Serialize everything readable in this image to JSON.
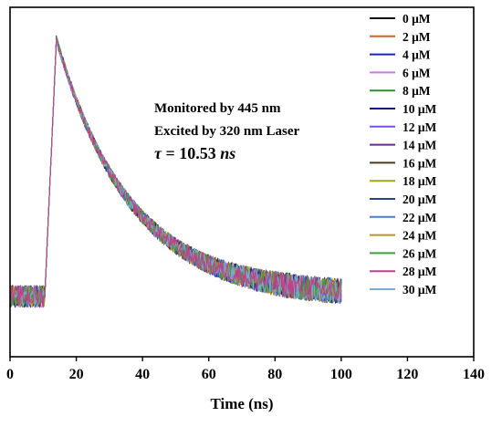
{
  "chart_data": {
    "type": "line",
    "title": "",
    "xlabel": "Time (ns)",
    "ylabel": "",
    "xlim": [
      0,
      140
    ],
    "ylim": [
      0,
      1.1
    ],
    "x_ticks": [
      0,
      20,
      40,
      60,
      80,
      100,
      120,
      140
    ],
    "x_tick_labels": [
      "0",
      "20",
      "40",
      "60",
      "80",
      "100",
      "120",
      "140"
    ],
    "y_ticks_shown": false,
    "grid": false,
    "legend_position": "right",
    "annotations": {
      "line1": "Monitored by 445 nm",
      "line2": "Excited by 320 nm Laser",
      "tau_symbol": "τ",
      "tau_eq": " = 10.53 ",
      "tau_unit": "ns"
    },
    "decay_model": {
      "baseline": 0.19,
      "rise_start_ns": 10.5,
      "peak_ns": 14.0,
      "peak_value": 1.0,
      "tau_ns": 10.53,
      "x_end_ns": 100
    },
    "series": [
      {
        "name": "0 μM",
        "color": "#111111"
      },
      {
        "name": "2 μM",
        "color": "#d2622a"
      },
      {
        "name": "4 μM",
        "color": "#1d1dd6"
      },
      {
        "name": "6 μM",
        "color": "#c77de6"
      },
      {
        "name": "8 μM",
        "color": "#2f8f2f"
      },
      {
        "name": "10 μM",
        "color": "#141470"
      },
      {
        "name": "12 μM",
        "color": "#7a4ef0"
      },
      {
        "name": "14 μM",
        "color": "#6a2d84"
      },
      {
        "name": "16 μM",
        "color": "#4b3a1e"
      },
      {
        "name": "18 μM",
        "color": "#a6a61b"
      },
      {
        "name": "20 μM",
        "color": "#2a3f8f"
      },
      {
        "name": "22 μM",
        "color": "#4a7fc8"
      },
      {
        "name": "24 μM",
        "color": "#b8902e"
      },
      {
        "name": "26 μM",
        "color": "#3fa03f"
      },
      {
        "name": "28 μM",
        "color": "#c0408a"
      },
      {
        "name": "30 μM",
        "color": "#7aaad8"
      }
    ]
  }
}
